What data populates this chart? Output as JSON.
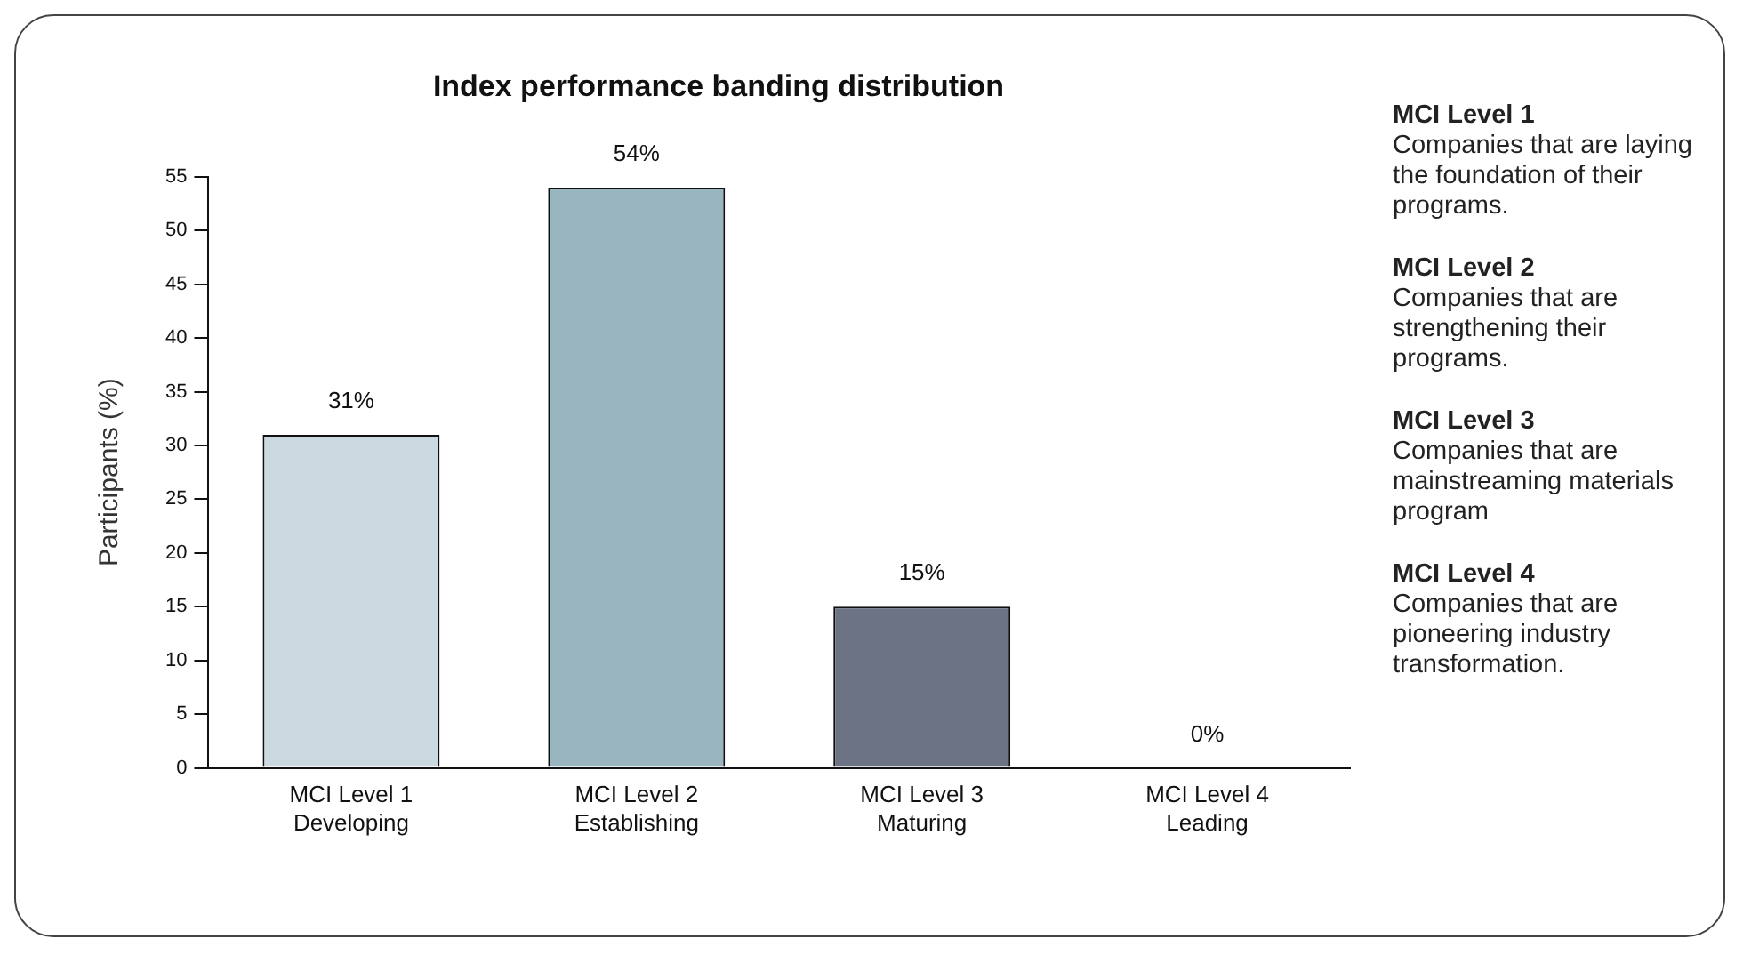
{
  "chart_data": {
    "type": "bar",
    "title": "Index performance banding distribution",
    "ylabel": "Participants (%)",
    "categories": [
      "MCI Level 1\nDeveloping",
      "MCI Level 2\nEstablishing",
      "MCI Level 3\nMaturing",
      "MCI Level 4\nLeading"
    ],
    "values": [
      31,
      54,
      15,
      0
    ],
    "colors": [
      "#cad9e0",
      "#98b5c0",
      "#6c7385",
      "#4b5262"
    ],
    "value_labels": [
      "31%",
      "54%",
      "15%",
      "0%"
    ],
    "ylim": [
      0,
      55
    ],
    "yticks": [
      0,
      5,
      10,
      15,
      20,
      25,
      30,
      35,
      40,
      45,
      50,
      55
    ],
    "grid": false,
    "legend": false,
    "annotations": [
      "MCI Level 1\nCompanies that are laying the foundation of their programs.",
      "MCI Level 2\nCompanies that are strengthening their programs.",
      "MCI Level 3\nCompanies that are mainstreaming materials program",
      "MCI Level 4\nCompanies that are pioneering industry transformation."
    ]
  }
}
